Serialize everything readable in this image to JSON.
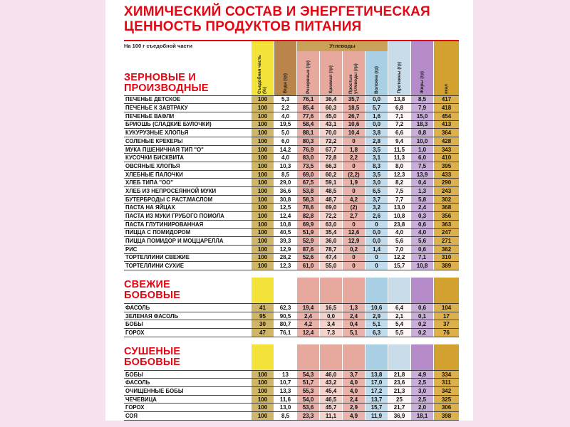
{
  "page": {
    "title_line1": "ХИМИЧЕСКИЙ СОСТАВ И ЭНЕРГЕТИЧЕСКАЯ",
    "title_line2": "ЦЕННОСТЬ ПРОДУКТОВ ПИТАНИЯ",
    "subtitle": "На 100 г съедобной части"
  },
  "colors": {
    "accent_red": "#e30613",
    "page_background": "#f6e2ee",
    "row_line": "#454545"
  },
  "columns": {
    "group_label": "Углеводы",
    "group_color": "#c9a158",
    "headers": [
      "Съедобная часть (%)",
      "Вода (гр)",
      "Резервные (гр)",
      "Крахмал (гр)",
      "Простые углеводы (гр)",
      "Волокна (гр)",
      "Протеины (гр)",
      "Жиры (гр)",
      "ккал"
    ],
    "header_colors": [
      "#f2e23a",
      "#b9854b",
      "#e7a99e",
      "#e7a99e",
      "#e7a99e",
      "#a9cfe5",
      "#c9dce9",
      "#b58cc9",
      "#d2a12f"
    ],
    "band_colors": [
      "#f2e23a",
      "#ffffff",
      "#e7a99e",
      "#e7a99e",
      "#e7a99e",
      "#a9cfe5",
      "#c9dce9",
      "#b58cc9",
      "#d2a12f"
    ],
    "cell_colors": [
      "#cfb567",
      "#ffffff",
      "#e9b3ab",
      "#f5d3cd",
      "#e9b3ab",
      "#bfdbec",
      "#fdf6f4",
      "#c9aeda",
      "#dcb14c"
    ]
  },
  "sections": [
    {
      "title_lines": [
        "ЗЕРНОВЫЕ И",
        "ПРОИЗВОДНЫЕ"
      ],
      "rows": [
        {
          "name": "ПЕЧЕНЬЕ ДЕТСКОЕ",
          "values": [
            "100",
            "5,3",
            "76,1",
            "36,4",
            "35,7",
            "0,0",
            "13,8",
            "8,5",
            "417"
          ]
        },
        {
          "name": "ПЕЧЕНЬЕ К ЗАВТРАКУ",
          "values": [
            "100",
            "2,2",
            "85,4",
            "60,3",
            "18,5",
            "5,7",
            "6,8",
            "7,9",
            "418"
          ]
        },
        {
          "name": "ПЕЧЕНЬЕ ВАФЛИ",
          "values": [
            "100",
            "4,0",
            "77,6",
            "45,0",
            "26,7",
            "1,6",
            "7,1",
            "15,0",
            "454"
          ]
        },
        {
          "name": "БРИОШЬ (СЛАДКИЕ БУЛОЧКИ)",
          "values": [
            "100",
            "19,5",
            "58,4",
            "43,1",
            "10,6",
            "0,0",
            "7,2",
            "18,3",
            "413"
          ]
        },
        {
          "name": "КУКУРУЗНЫЕ ХЛОПЬЯ",
          "values": [
            "100",
            "5,0",
            "88,1",
            "70,0",
            "10,4",
            "3,8",
            "6,6",
            "0,8",
            "364"
          ]
        },
        {
          "name": "СОЛЕНЫЕ КРЕКЕРЫ",
          "values": [
            "100",
            "6,0",
            "80,3",
            "72,2",
            "0",
            "2,8",
            "9,4",
            "10,0",
            "428"
          ]
        },
        {
          "name": "МУКА ПШЕНИЧНАЯ ТИП \"О\"",
          "values": [
            "100",
            "14,2",
            "76,9",
            "67,7",
            "1,8",
            "3,5",
            "11,5",
            "1,0",
            "343"
          ]
        },
        {
          "name": "КУСОЧКИ БИСКВИТА",
          "values": [
            "100",
            "4,0",
            "83,0",
            "72,8",
            "2,2",
            "3,1",
            "11,3",
            "6,0",
            "410"
          ]
        },
        {
          "name": "ОВСЯНЫЕ ХЛОПЬЯ",
          "values": [
            "100",
            "10,3",
            "73,5",
            "66,3",
            "0",
            "8,3",
            "8,0",
            "7,5",
            "395"
          ]
        },
        {
          "name": "ХЛЕБНЫЕ ПАЛОЧКИ",
          "values": [
            "100",
            "8,5",
            "69,0",
            "60,2",
            "(2,2)",
            "3,5",
            "12,3",
            "13,9",
            "433"
          ]
        },
        {
          "name": "ХЛЕБ ТИПА \"ОО\"",
          "values": [
            "100",
            "29,0",
            "67,5",
            "59,1",
            "1,9",
            "3,0",
            "8,2",
            "0,4",
            "290"
          ]
        },
        {
          "name": "ХЛЕБ ИЗ НЕПРОСЕЯННОЙ МУКИ",
          "values": [
            "100",
            "36,6",
            "53,8",
            "48,5",
            "0",
            "6,5",
            "7,5",
            "1,3",
            "243"
          ]
        },
        {
          "name": "БУТЕРБРОДЫ С РАСТ.МАСЛОМ",
          "values": [
            "100",
            "30,8",
            "58,3",
            "48,7",
            "4,2",
            "3,7",
            "7,7",
            "5,8",
            "302"
          ]
        },
        {
          "name": "ПАСТА НА ЯЙЦАХ",
          "values": [
            "100",
            "12,5",
            "78,6",
            "69,0",
            "(2)",
            "3,2",
            "13,0",
            "2,4",
            "368"
          ]
        },
        {
          "name": "ПАСТА ИЗ МУКИ ГРУБОГО ПОМОЛА",
          "values": [
            "100",
            "12,4",
            "82,8",
            "72,2",
            "2,7",
            "2,6",
            "10,8",
            "0,3",
            "356"
          ]
        },
        {
          "name": "ПАСТА ГЛУТИНИРОВАННАЯ",
          "values": [
            "100",
            "10,8",
            "69,9",
            "63,0",
            "0",
            "0",
            "23,8",
            "0,6",
            "363"
          ]
        },
        {
          "name": "ПИЦЦА С ПОМИДОРОМ",
          "values": [
            "100",
            "40,5",
            "51,9",
            "35,4",
            "12,6",
            "0,0",
            "4,0",
            "4,0",
            "247"
          ]
        },
        {
          "name": "ПИЦЦА ПОМИДОР И МОЦЦАРЕЛЛА",
          "values": [
            "100",
            "39,3",
            "52,9",
            "36,0",
            "12,9",
            "0,0",
            "5,6",
            "5,6",
            "271"
          ]
        },
        {
          "name": "РИС",
          "values": [
            "100",
            "12,9",
            "87,6",
            "78,7",
            "0,2",
            "1,4",
            "7,0",
            "0,6",
            "362"
          ]
        },
        {
          "name": "ТОРТЕЛЛИНИ СВЕЖИЕ",
          "values": [
            "100",
            "28,2",
            "52,6",
            "47,4",
            "0",
            "0",
            "12,2",
            "7,1",
            "310"
          ]
        },
        {
          "name": "ТОРТЕЛЛИНИ СУХИЕ",
          "values": [
            "100",
            "12,3",
            "61,0",
            "55,0",
            "0",
            "0",
            "15,7",
            "10,8",
            "389"
          ]
        }
      ]
    },
    {
      "title_lines": [
        "СВЕЖИЕ",
        "БОБОВЫЕ"
      ],
      "rows": [
        {
          "name": "ФАСОЛЬ",
          "values": [
            "41",
            "62,3",
            "19,4",
            "16,5",
            "1,3",
            "10,6",
            "6,4",
            "0,6",
            "104"
          ]
        },
        {
          "name": "ЗЕЛЕНАЯ ФАСОЛЬ",
          "values": [
            "95",
            "90,5",
            "2,4",
            "0,0",
            "2,4",
            "2,9",
            "2,1",
            "0,1",
            "17"
          ]
        },
        {
          "name": "БОБЫ",
          "values": [
            "30",
            "80,7",
            "4,2",
            "3,4",
            "0,4",
            "5,1",
            "5,4",
            "0,2",
            "37"
          ]
        },
        {
          "name": "ГОРОХ",
          "values": [
            "47",
            "76,1",
            "12,4",
            "7,3",
            "5,1",
            "6,3",
            "5,5",
            "0,2",
            "76"
          ]
        }
      ]
    },
    {
      "title_lines": [
        "СУШЕНЫЕ",
        "БОБОВЫЕ"
      ],
      "rows": [
        {
          "name": "БОБЫ",
          "values": [
            "100",
            "13",
            "54,3",
            "46,0",
            "3,7",
            "13,8",
            "21,8",
            "4,9",
            "334"
          ]
        },
        {
          "name": "ФАСОЛЬ",
          "values": [
            "100",
            "10,7",
            "51,7",
            "43,2",
            "4,0",
            "17,0",
            "23,6",
            "2,5",
            "311"
          ]
        },
        {
          "name": "ОЧИЩЕННЫЕ БОБЫ",
          "values": [
            "100",
            "13,3",
            "55,3",
            "45,4",
            "4,0",
            "17,2",
            "21,3",
            "3,0",
            "342"
          ]
        },
        {
          "name": "ЧЕЧЕВИЦА",
          "values": [
            "100",
            "11,6",
            "54,0",
            "46,5",
            "2,4",
            "13,7",
            "25",
            "2,5",
            "325"
          ]
        },
        {
          "name": "ГОРОХ",
          "values": [
            "100",
            "13,0",
            "53,6",
            "45,7",
            "2,9",
            "15,7",
            "21,7",
            "2,0",
            "306"
          ]
        },
        {
          "name": "СОЯ",
          "values": [
            "100",
            "8,5",
            "23,3",
            "11,1",
            "4,9",
            "11,9",
            "36,9",
            "18,1",
            "398"
          ]
        }
      ]
    }
  ]
}
